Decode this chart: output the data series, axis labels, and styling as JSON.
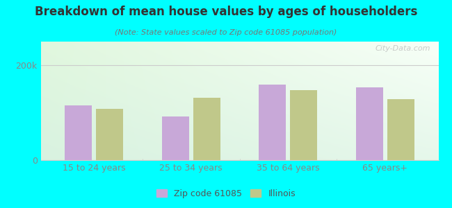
{
  "title": "Breakdown of mean house values by ages of householders",
  "subtitle": "(Note: State values scaled to Zip code 61085 population)",
  "categories": [
    "15 to 24 years",
    "25 to 34 years",
    "35 to 64 years",
    "65 years+"
  ],
  "zip_values": [
    115000,
    92000,
    160000,
    153000
  ],
  "il_values": [
    108000,
    132000,
    148000,
    128000
  ],
  "zip_color": "#C8A8D8",
  "il_color": "#C0C88A",
  "background_outer": "#00FFFF",
  "ymax": 250000,
  "yticks": [
    0,
    200000
  ],
  "ytick_labels": [
    "0",
    "200k"
  ],
  "legend_labels": [
    "Zip code 61085",
    "Illinois"
  ],
  "watermark": "City-Data.com",
  "title_color": "#333333",
  "subtitle_color": "#777777",
  "tick_color": "#888888",
  "grid_color": "#cccccc"
}
